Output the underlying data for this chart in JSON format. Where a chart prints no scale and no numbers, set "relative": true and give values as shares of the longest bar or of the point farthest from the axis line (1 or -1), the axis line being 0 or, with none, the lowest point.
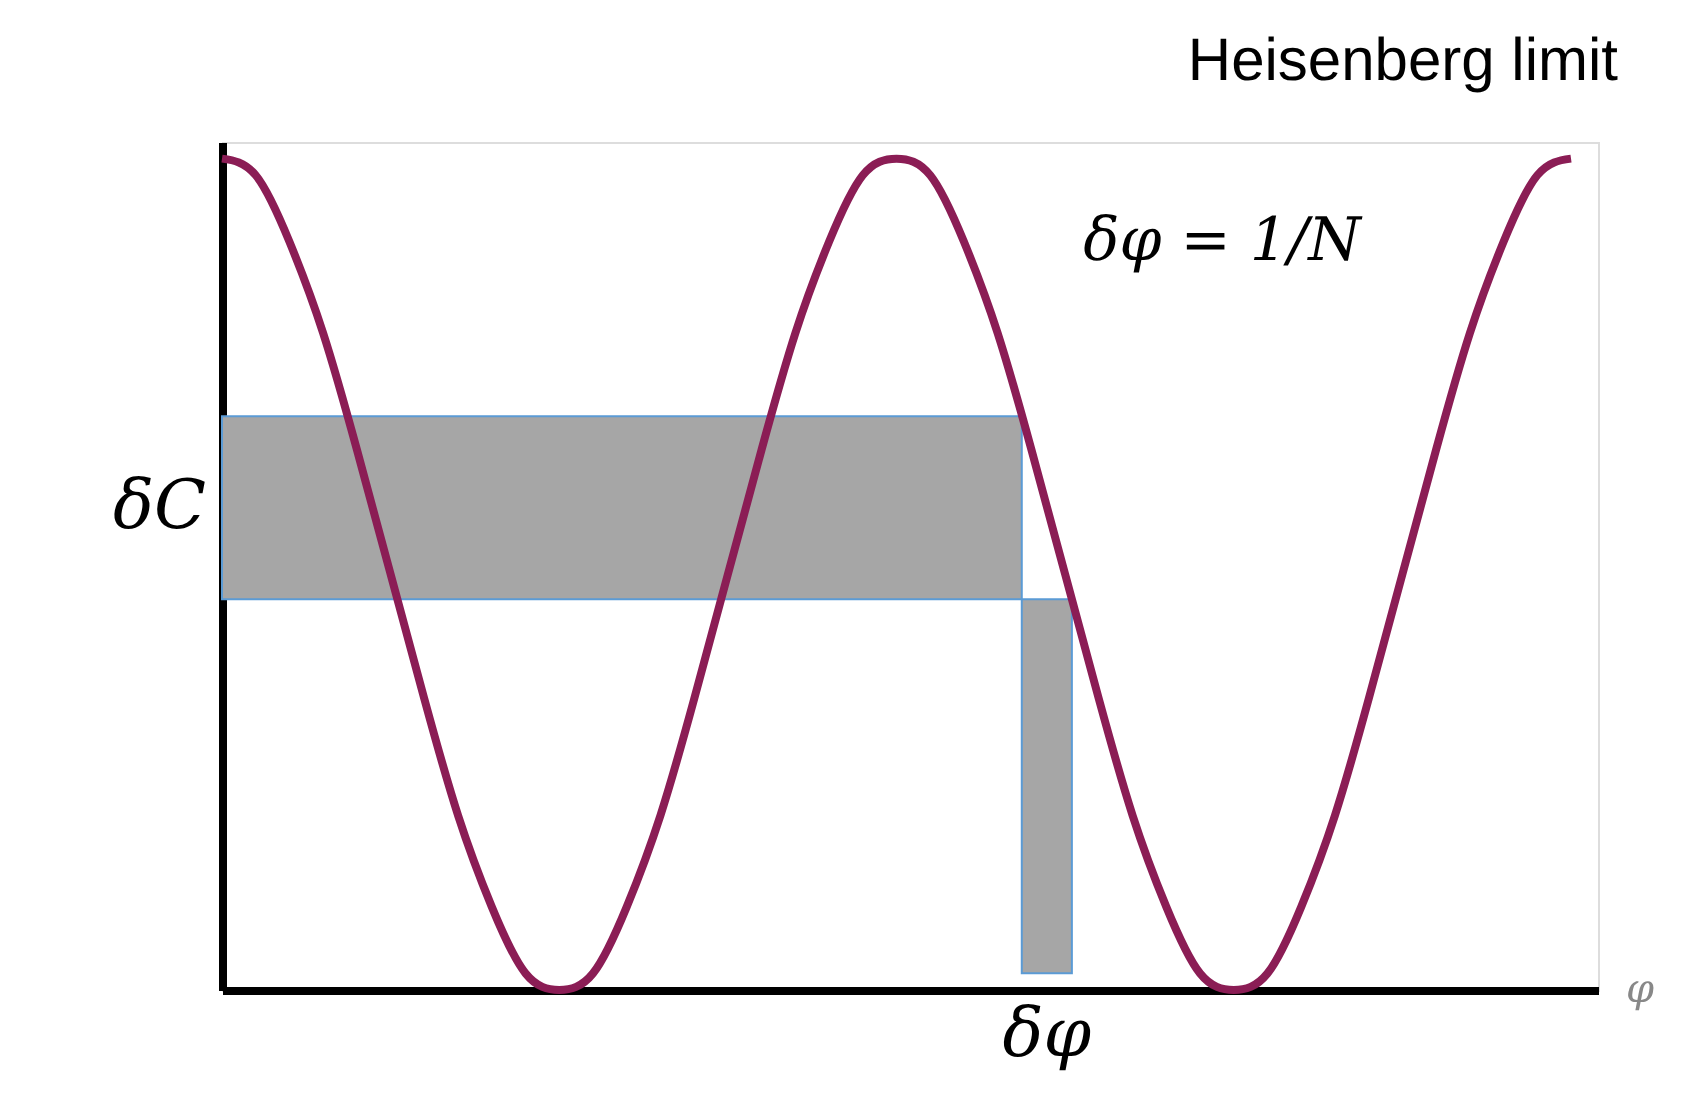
{
  "chart_data": {
    "type": "line",
    "relative": true,
    "title": "Heisenberg limit",
    "xlabel": "φ",
    "annotations": [
      "δφ = 1/N",
      "δφ"
    ],
    "categories": [
      null,
      null,
      null,
      null,
      null,
      null,
      null,
      null,
      null,
      null,
      null,
      null,
      null,
      null,
      null,
      null,
      null,
      null,
      null,
      null,
      null,
      null,
      null,
      null,
      null,
      null,
      null,
      null,
      null,
      null,
      null,
      null,
      null,
      null,
      null,
      null,
      null,
      null,
      null,
      null,
      null
    ],
    "tick_labels": false,
    "marker": "none",
    "line_style": "solid",
    "series": [
      {
        "color": "#8b1d55",
        "values": [
          1,
          0.98,
          0.9,
          0.79,
          0.65,
          0.5,
          0.35,
          0.21,
          0.1,
          0.02,
          0,
          0.02,
          0.1,
          0.21,
          0.35,
          0.5,
          0.65,
          0.79,
          0.9,
          0.98,
          1,
          0.98,
          0.9,
          0.79,
          0.65,
          0.5,
          0.35,
          0.21,
          0.1,
          0.02,
          0,
          0.02,
          0.1,
          0.21,
          0.35,
          0.5,
          0.65,
          0.79,
          0.9,
          0.98,
          1
        ]
      }
    ],
    "bands": [
      {
        "axis": "y",
        "from": 0.47,
        "to": 0.69,
        "label": "δC",
        "color": "#a6a6a6"
      }
    ]
  }
}
